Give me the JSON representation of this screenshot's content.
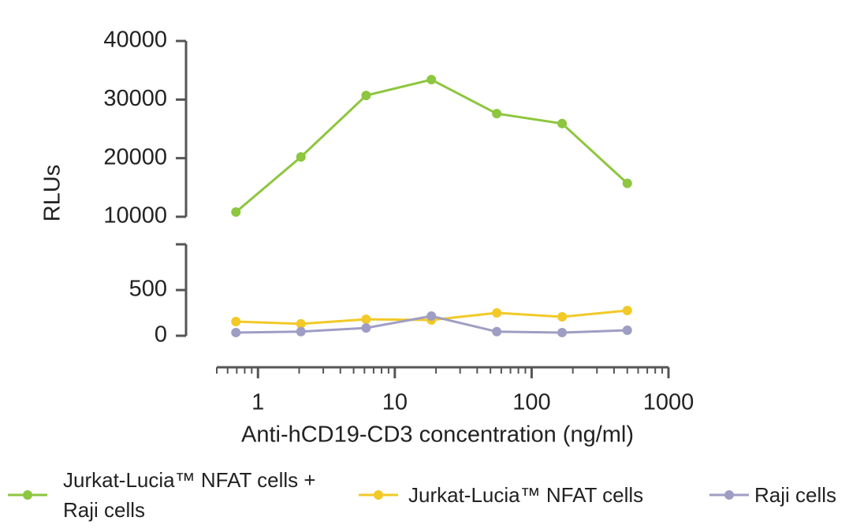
{
  "chart_data": {
    "type": "line",
    "xlabel": "Anti-hCD19-CD3 concentration (ng/ml)",
    "ylabel": "RLUs",
    "x": [
      0.69,
      2.06,
      6.17,
      18.5,
      55.6,
      167,
      500
    ],
    "xlim": [
      0.5,
      1000
    ],
    "xticks": [
      1,
      10,
      100,
      1000
    ],
    "xscale": "log",
    "minor_ticks": true,
    "ylim": [
      [
        0,
        1000
      ],
      [
        10000,
        40000
      ]
    ],
    "yticks": [
      [
        0,
        500
      ],
      [
        10000,
        20000,
        30000,
        40000
      ]
    ],
    "legend": "bottom",
    "series": [
      {
        "name": "Jurkat-Lucia™ NFAT cells + Raji cells",
        "color": "#8dc63f",
        "values": [
          10800,
          20200,
          30700,
          33400,
          27600,
          25900,
          15700
        ]
      },
      {
        "name": "Jurkat-Lucia™ NFAT cells",
        "color": "#f2c926",
        "values": [
          155,
          130,
          180,
          172,
          250,
          207,
          276
        ]
      },
      {
        "name": "Raji cells",
        "color": "#9e9ec4",
        "values": [
          35,
          45,
          85,
          215,
          45,
          35,
          60
        ]
      }
    ]
  }
}
